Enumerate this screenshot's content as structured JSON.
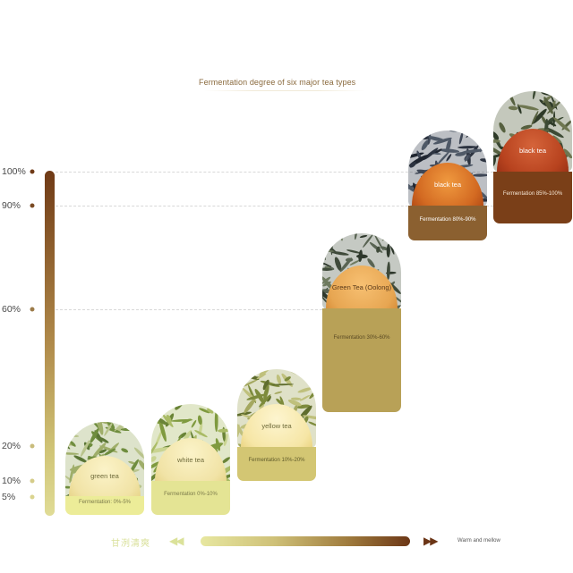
{
  "chart_data": {
    "type": "bar",
    "title": "Fermentation degree of six major tea types",
    "y_ticks": [
      "100%",
      "90%",
      "60%",
      "20%",
      "10%",
      "5%"
    ],
    "ylim": [
      0,
      100
    ],
    "categories": [
      "green tea",
      "white tea",
      "yellow tea",
      "Green Tea (Oolong)",
      "black tea",
      "black tea"
    ],
    "series": [
      {
        "range_min": [
          0,
          0,
          10,
          30,
          80,
          85
        ],
        "range_max": [
          5,
          10,
          20,
          60,
          90,
          100
        ],
        "values": [
          5,
          10,
          20,
          60,
          90,
          100
        ]
      }
    ],
    "range_labels": [
      "Fermentation: 0%-5%",
      "Fermentation 0%-10%",
      "Fermentation 10%-20%",
      "Fermentation 30%-60%",
      "Fermentation 80%-90%",
      "Fermentation 85%-100%"
    ],
    "x_axis": {
      "left_label": "甘洌清爽",
      "left_arrows": "◀◀",
      "right_arrows": "▶▶",
      "right_label": "Warm and mellow"
    },
    "grid": false,
    "colors": {
      "scale_top": "#6f3a16",
      "scale_bottom": "#e0dc96"
    }
  }
}
